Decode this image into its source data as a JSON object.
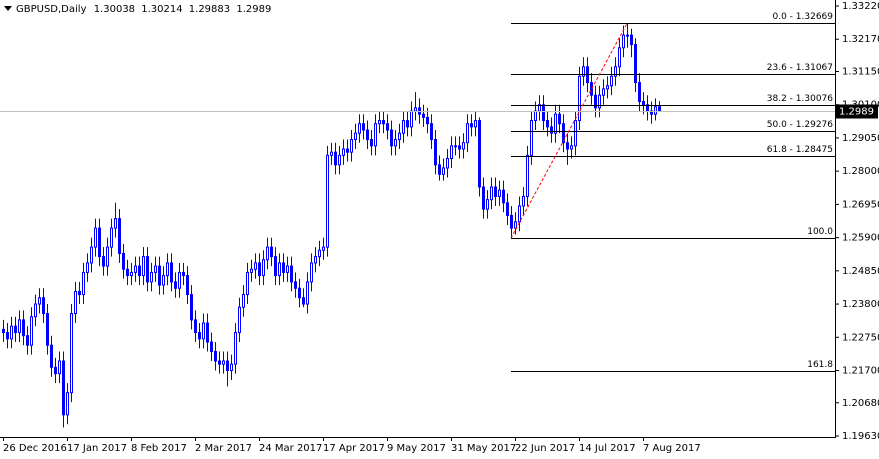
{
  "chart_data": {
    "type": "candlestick",
    "title": "GBPUSD,Daily",
    "color": "#0000ff",
    "grid": false,
    "categories": [
      "26 Dec 2016",
      null,
      null,
      null,
      null,
      null,
      null,
      null,
      null,
      null,
      null,
      null,
      null,
      null,
      null,
      null,
      "17 Jan 2017",
      null,
      null,
      null,
      null,
      null,
      null,
      null,
      null,
      null,
      null,
      null,
      null,
      null,
      null,
      null,
      "8 Feb 2017",
      null,
      null,
      null,
      null,
      null,
      null,
      null,
      null,
      null,
      null,
      null,
      null,
      null,
      null,
      null,
      "2 Mar 2017",
      null,
      null,
      null,
      null,
      null,
      null,
      null,
      null,
      null,
      null,
      null,
      null,
      null,
      null,
      null,
      "24 Mar 2017",
      null,
      null,
      null,
      null,
      null,
      null,
      null,
      null,
      null,
      null,
      null,
      null,
      null,
      null,
      null,
      "17 Apr 2017",
      null,
      null,
      null,
      null,
      null,
      null,
      null,
      null,
      null,
      null,
      null,
      null,
      null,
      null,
      null,
      "9 May 2017",
      null,
      null,
      null,
      null,
      null,
      null,
      null,
      null,
      null,
      null,
      null,
      null,
      null,
      null,
      null,
      "31 May 2017",
      null,
      null,
      null,
      null,
      null,
      null,
      null,
      null,
      null,
      null,
      null,
      null,
      null,
      null,
      null,
      "22 Jun 2017",
      null,
      null,
      null,
      null,
      null,
      null,
      null,
      null,
      null,
      null,
      null,
      null,
      null,
      null,
      null,
      "14 Jul 2017",
      null,
      null,
      null,
      null,
      null,
      null,
      null,
      null,
      null,
      null,
      null,
      null,
      null,
      null,
      null,
      "7 Aug 2017",
      null,
      null,
      null,
      null
    ],
    "open": [
      1.23,
      1.229,
      1.227,
      1.231,
      1.229,
      1.233,
      1.228,
      1.225,
      1.234,
      1.238,
      1.24,
      1.235,
      1.225,
      1.218,
      1.216,
      1.22,
      1.203,
      1.21,
      1.235,
      1.242,
      1.241,
      1.248,
      1.251,
      1.256,
      1.262,
      1.253,
      1.25,
      1.256,
      1.262,
      1.265,
      1.254,
      1.249,
      1.247,
      1.248,
      1.25,
      1.247,
      1.253,
      1.245,
      1.248,
      1.25,
      1.244,
      1.247,
      1.251,
      1.245,
      1.243,
      1.248,
      1.247,
      1.241,
      1.233,
      1.229,
      1.227,
      1.232,
      1.226,
      1.223,
      1.22,
      1.219,
      1.22,
      1.217,
      1.219,
      1.229,
      1.237,
      1.241,
      1.248,
      1.249,
      1.251,
      1.247,
      1.252,
      1.256,
      1.253,
      1.247,
      1.251,
      1.248,
      1.25,
      1.245,
      1.243,
      1.24,
      1.238,
      1.245,
      1.251,
      1.253,
      1.255,
      1.256,
      1.285,
      1.286,
      1.282,
      1.285,
      1.287,
      1.286,
      1.29,
      1.292,
      1.295,
      1.293,
      1.29,
      1.288,
      1.295,
      1.296,
      1.295,
      1.293,
      1.288,
      1.29,
      1.292,
      1.296,
      1.294,
      1.299,
      1.3,
      1.298,
      1.297,
      1.295,
      1.29,
      1.282,
      1.279,
      1.281,
      1.284,
      1.288,
      1.288,
      1.287,
      1.289,
      1.295,
      1.294,
      1.296,
      1.275,
      1.268,
      1.271,
      1.275,
      1.272,
      1.274,
      1.27,
      1.266,
      1.262,
      1.264,
      1.269,
      1.272,
      1.285,
      1.296,
      1.299,
      1.301,
      1.296,
      1.294,
      1.292,
      1.298,
      1.295,
      1.289,
      1.287,
      1.288,
      1.296,
      1.31,
      1.313,
      1.308,
      1.304,
      1.3,
      1.304,
      1.306,
      1.307,
      1.31,
      1.313,
      1.319,
      1.323,
      1.323,
      1.32,
      1.308,
      1.302,
      1.301,
      1.299,
      1.298,
      1.30038
    ],
    "high": [
      1.233,
      1.232,
      1.234,
      1.234,
      1.236,
      1.236,
      1.231,
      1.237,
      1.241,
      1.243,
      1.243,
      1.238,
      1.228,
      1.221,
      1.223,
      1.223,
      1.213,
      1.238,
      1.245,
      1.245,
      1.251,
      1.254,
      1.259,
      1.265,
      1.265,
      1.256,
      1.259,
      1.265,
      1.27,
      1.268,
      1.257,
      1.252,
      1.251,
      1.253,
      1.253,
      1.256,
      1.256,
      1.251,
      1.253,
      1.253,
      1.25,
      1.254,
      1.254,
      1.248,
      1.251,
      1.251,
      1.25,
      1.244,
      1.236,
      1.232,
      1.235,
      1.235,
      1.229,
      1.226,
      1.223,
      1.223,
      1.223,
      1.222,
      1.232,
      1.24,
      1.244,
      1.251,
      1.252,
      1.254,
      1.254,
      1.255,
      1.259,
      1.259,
      1.256,
      1.254,
      1.254,
      1.253,
      1.253,
      1.248,
      1.246,
      1.243,
      1.248,
      1.254,
      1.256,
      1.258,
      1.259,
      1.288,
      1.289,
      1.289,
      1.288,
      1.29,
      1.29,
      1.293,
      1.295,
      1.298,
      1.298,
      1.296,
      1.293,
      1.298,
      1.299,
      1.299,
      1.298,
      1.296,
      1.293,
      1.295,
      1.299,
      1.299,
      1.302,
      1.305,
      1.303,
      1.301,
      1.3,
      1.298,
      1.293,
      1.285,
      1.284,
      1.287,
      1.291,
      1.291,
      1.291,
      1.292,
      1.298,
      1.298,
      1.299,
      1.297,
      1.278,
      1.274,
      1.278,
      1.278,
      1.277,
      1.277,
      1.273,
      1.269,
      1.267,
      1.272,
      1.275,
      1.288,
      1.299,
      1.302,
      1.304,
      1.304,
      1.299,
      1.297,
      1.301,
      1.301,
      1.298,
      1.292,
      1.291,
      1.299,
      1.313,
      1.316,
      1.316,
      1.311,
      1.307,
      1.307,
      1.309,
      1.31,
      1.313,
      1.316,
      1.322,
      1.326,
      1.32669,
      1.325,
      1.322,
      1.311,
      1.305,
      1.304,
      1.302,
      1.303,
      1.30214
    ],
    "low": [
      1.226,
      1.224,
      1.224,
      1.226,
      1.226,
      1.225,
      1.222,
      1.222,
      1.231,
      1.235,
      1.232,
      1.222,
      1.215,
      1.213,
      1.213,
      1.199,
      1.2,
      1.207,
      1.232,
      1.238,
      1.238,
      1.245,
      1.248,
      1.253,
      1.25,
      1.247,
      1.247,
      1.253,
      1.259,
      1.251,
      1.246,
      1.244,
      1.244,
      1.245,
      1.244,
      1.244,
      1.242,
      1.242,
      1.245,
      1.241,
      1.241,
      1.244,
      1.242,
      1.24,
      1.24,
      1.244,
      1.238,
      1.23,
      1.226,
      1.224,
      1.224,
      1.223,
      1.22,
      1.217,
      1.216,
      1.216,
      1.212,
      1.214,
      1.216,
      1.226,
      1.234,
      1.238,
      1.245,
      1.246,
      1.244,
      1.244,
      1.249,
      1.25,
      1.244,
      1.244,
      1.245,
      1.245,
      1.242,
      1.24,
      1.237,
      1.237,
      1.235,
      1.242,
      1.248,
      1.25,
      1.252,
      1.253,
      1.282,
      1.279,
      1.279,
      1.282,
      1.283,
      1.283,
      1.287,
      1.289,
      1.29,
      1.287,
      1.285,
      1.285,
      1.292,
      1.292,
      1.29,
      1.285,
      1.285,
      1.287,
      1.289,
      1.291,
      1.291,
      1.296,
      1.295,
      1.294,
      1.292,
      1.287,
      1.279,
      1.277,
      1.277,
      1.278,
      1.281,
      1.285,
      1.284,
      1.284,
      1.286,
      1.291,
      1.291,
      1.272,
      1.265,
      1.265,
      1.268,
      1.269,
      1.269,
      1.267,
      1.263,
      1.25882,
      1.26,
      1.261,
      1.266,
      1.269,
      1.282,
      1.293,
      1.296,
      1.293,
      1.291,
      1.289,
      1.289,
      1.292,
      1.286,
      1.282,
      1.284,
      1.285,
      1.293,
      1.307,
      1.305,
      1.301,
      1.297,
      1.297,
      1.301,
      1.303,
      1.304,
      1.307,
      1.31,
      1.316,
      1.319,
      1.316,
      1.305,
      1.299,
      1.298,
      1.296,
      1.295,
      1.296,
      1.29883
    ],
    "close": [
      1.229,
      1.227,
      1.231,
      1.229,
      1.233,
      1.228,
      1.225,
      1.234,
      1.238,
      1.24,
      1.235,
      1.225,
      1.218,
      1.216,
      1.22,
      1.203,
      1.21,
      1.235,
      1.242,
      1.241,
      1.248,
      1.251,
      1.256,
      1.262,
      1.253,
      1.25,
      1.256,
      1.262,
      1.265,
      1.254,
      1.249,
      1.247,
      1.248,
      1.25,
      1.247,
      1.253,
      1.245,
      1.248,
      1.25,
      1.244,
      1.247,
      1.251,
      1.245,
      1.243,
      1.248,
      1.247,
      1.241,
      1.233,
      1.229,
      1.227,
      1.232,
      1.226,
      1.223,
      1.22,
      1.219,
      1.22,
      1.217,
      1.219,
      1.229,
      1.237,
      1.241,
      1.248,
      1.249,
      1.251,
      1.247,
      1.252,
      1.256,
      1.253,
      1.247,
      1.251,
      1.248,
      1.25,
      1.245,
      1.243,
      1.24,
      1.238,
      1.245,
      1.251,
      1.253,
      1.255,
      1.256,
      1.285,
      1.286,
      1.282,
      1.285,
      1.287,
      1.286,
      1.29,
      1.292,
      1.295,
      1.293,
      1.29,
      1.288,
      1.295,
      1.296,
      1.295,
      1.293,
      1.288,
      1.29,
      1.292,
      1.296,
      1.294,
      1.299,
      1.3,
      1.298,
      1.297,
      1.295,
      1.29,
      1.282,
      1.279,
      1.281,
      1.284,
      1.288,
      1.288,
      1.287,
      1.289,
      1.295,
      1.294,
      1.296,
      1.275,
      1.268,
      1.271,
      1.275,
      1.272,
      1.274,
      1.27,
      1.266,
      1.262,
      1.264,
      1.269,
      1.272,
      1.285,
      1.296,
      1.299,
      1.301,
      1.296,
      1.294,
      1.292,
      1.298,
      1.295,
      1.289,
      1.287,
      1.288,
      1.296,
      1.31,
      1.313,
      1.308,
      1.304,
      1.3,
      1.304,
      1.306,
      1.307,
      1.31,
      1.313,
      1.319,
      1.323,
      1.323,
      1.32,
      1.308,
      1.302,
      1.301,
      1.299,
      1.298,
      1.30038,
      1.2989
    ],
    "ylim": [
      1.1963,
      1.3322
    ],
    "yticks": [
      {
        "value": 1.3322,
        "label": "1.33220"
      },
      {
        "value": 1.3217,
        "label": "1.32170"
      },
      {
        "value": 1.3115,
        "label": "1.31150"
      },
      {
        "value": 1.301,
        "label": "1.30100"
      },
      {
        "value": 1.2905,
        "label": "1.29050"
      },
      {
        "value": 1.28,
        "label": "1.28000"
      },
      {
        "value": 1.2695,
        "label": "1.26950"
      },
      {
        "value": 1.259,
        "label": "1.25900"
      },
      {
        "value": 1.2485,
        "label": "1.24850"
      },
      {
        "value": 1.238,
        "label": "1.23800"
      },
      {
        "value": 1.2275,
        "label": "1.22750"
      },
      {
        "value": 1.217,
        "label": "1.21700"
      },
      {
        "value": 1.2068,
        "label": "1.20680"
      },
      {
        "value": 1.1963,
        "label": "1.19630"
      }
    ],
    "fib_levels": [
      {
        "label": "0.0 - 1.32669",
        "price": 1.32669
      },
      {
        "label": "23.6 - 1.31067",
        "price": 1.31067
      },
      {
        "label": "38.2 - 1.30076",
        "price": 1.30076
      },
      {
        "label": "50.0 - 1.29276",
        "price": 1.29276
      },
      {
        "label": "61.8 - 1.28475",
        "price": 1.28475
      },
      {
        "label": "100.0",
        "price": 1.25882
      },
      {
        "label": "161.8",
        "price": 1.21687
      }
    ],
    "fib_color": "#000000",
    "trend_color": "#ff0000"
  }
}
